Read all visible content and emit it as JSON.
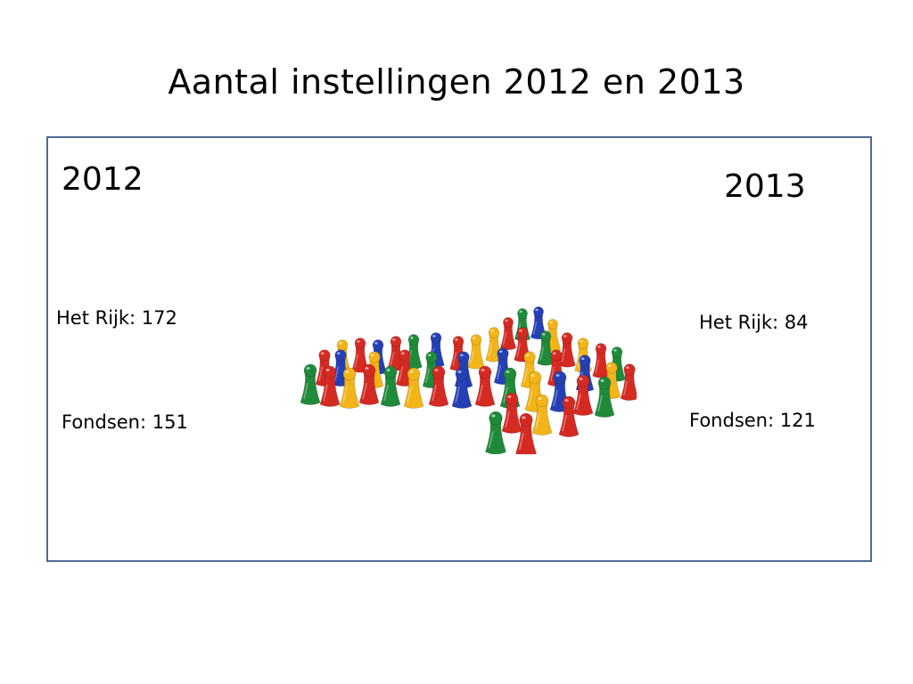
{
  "title": "Aantal instellingen 2012 en 2013",
  "y2012": {
    "year": "2012",
    "rijk": "Het Rijk: 172",
    "fondsen": "Fondsen: 151"
  },
  "y2013": {
    "year": "2013",
    "rijk": "Het Rijk: 84",
    "fondsen": "Fondsen: 121"
  },
  "colors": {
    "frame": "#4f6a90",
    "red": "#d42a22",
    "yellow": "#f2b418",
    "green": "#1f8a3a",
    "blue": "#2540b5"
  },
  "illustration": "game-pawns-group"
}
